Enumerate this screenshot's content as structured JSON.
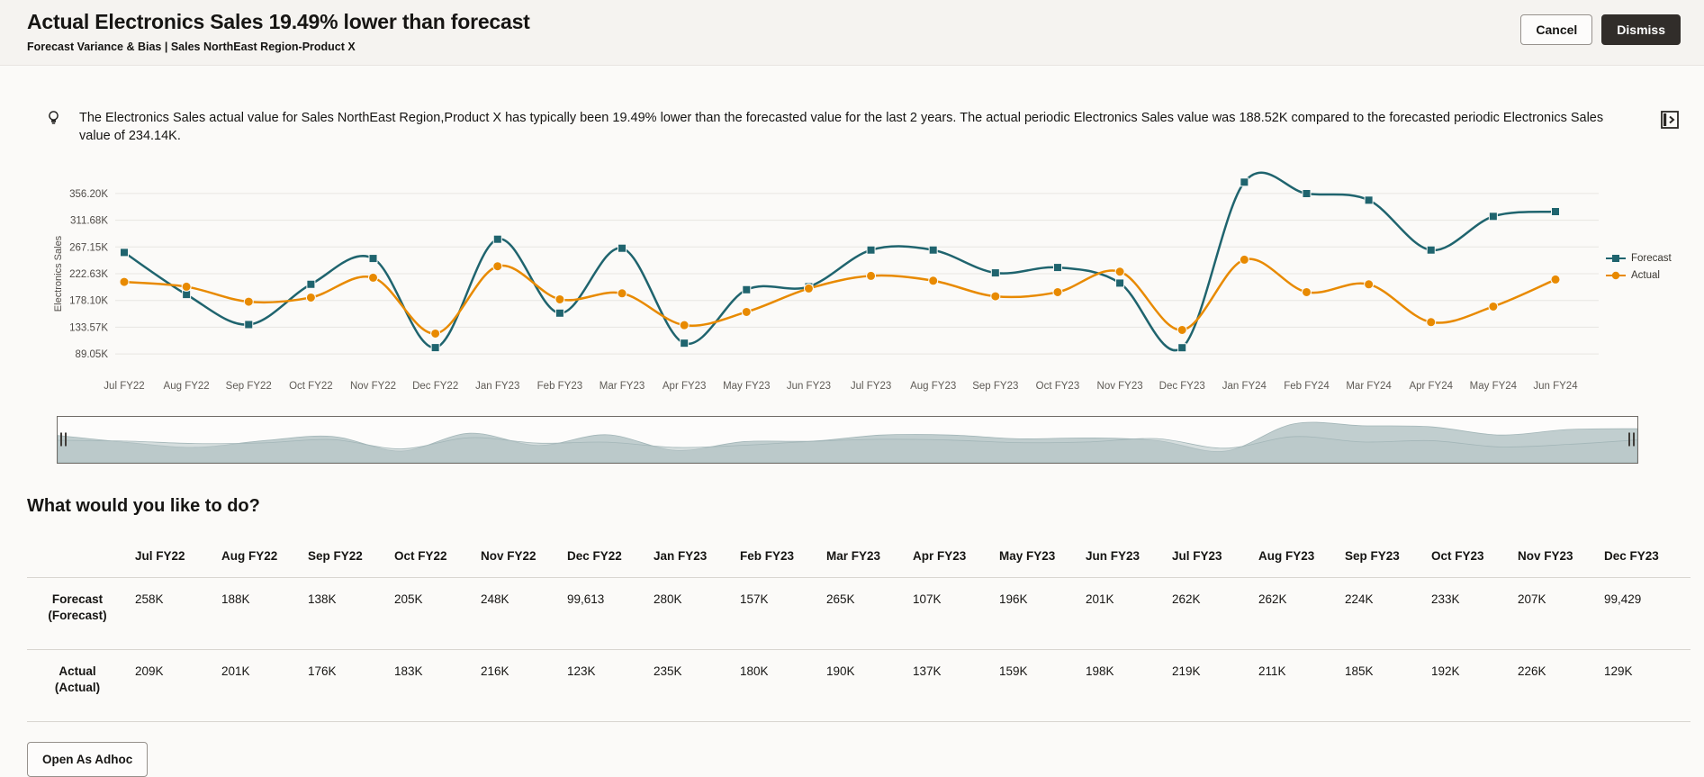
{
  "header": {
    "title": "Actual Electronics Sales 19.49% lower than forecast",
    "subtitle": "Forecast Variance & Bias | Sales NorthEast Region-Product X",
    "cancel_label": "Cancel",
    "dismiss_label": "Dismiss"
  },
  "insight": {
    "text": "The Electronics Sales actual value for Sales NorthEast Region,Product X has typically been 19.49% lower than the forecasted value for the last 2 years. The actual periodic Electronics Sales value was 188.52K compared to the forecasted periodic Electronics Sales value of 234.14K."
  },
  "chart_data": {
    "type": "line",
    "title": "",
    "xlabel": "",
    "ylabel": "Electronics Sales",
    "x": [
      "Jul FY22",
      "Aug FY22",
      "Sep FY22",
      "Oct FY22",
      "Nov FY22",
      "Dec FY22",
      "Jan FY23",
      "Feb FY23",
      "Mar FY23",
      "Apr FY23",
      "May FY23",
      "Jun FY23",
      "Jul FY23",
      "Aug FY23",
      "Sep FY23",
      "Oct FY23",
      "Nov FY23",
      "Dec FY23",
      "Jan FY24",
      "Feb FY24",
      "Mar FY24",
      "Apr FY24",
      "May FY24",
      "Jun FY24"
    ],
    "series": [
      {
        "name": "Forecast",
        "marker": "square",
        "color": "#1f646e",
        "values_k": [
          258,
          188,
          138,
          205,
          248,
          99.613,
          280,
          157,
          265,
          107,
          196,
          201,
          262,
          262,
          224,
          233,
          207,
          99.429,
          375,
          356,
          345,
          262,
          318,
          326
        ]
      },
      {
        "name": "Actual",
        "marker": "circle",
        "color": "#e88a00",
        "values_k": [
          209,
          201,
          176,
          183,
          216,
          123,
          235,
          180,
          190,
          137,
          159,
          198,
          219,
          211,
          185,
          192,
          226,
          129,
          246,
          192,
          205,
          142,
          168,
          213
        ]
      }
    ],
    "yticks": [
      {
        "v": 356.2,
        "label": "356.20K"
      },
      {
        "v": 311.68,
        "label": "311.68K"
      },
      {
        "v": 267.15,
        "label": "267.15K"
      },
      {
        "v": 222.63,
        "label": "222.63K"
      },
      {
        "v": 178.1,
        "label": "178.10K"
      },
      {
        "v": 133.57,
        "label": "133.57K"
      },
      {
        "v": 89.05,
        "label": "89.05K"
      }
    ],
    "ylim": [
      66.787,
      378.462
    ],
    "grid": true,
    "legend_position": "right",
    "overview_fill": "#b6c5c7"
  },
  "actions": {
    "heading": "What would you like to do?",
    "open_adhoc_label": "Open As Adhoc"
  },
  "table": {
    "columns": [
      "Jul FY22",
      "Aug FY22",
      "Sep FY22",
      "Oct FY22",
      "Nov FY22",
      "Dec FY22",
      "Jan FY23",
      "Feb FY23",
      "Mar FY23",
      "Apr FY23",
      "May FY23",
      "Jun FY23",
      "Jul FY23",
      "Aug FY23",
      "Sep FY23",
      "Oct FY23",
      "Nov FY23",
      "Dec FY23"
    ],
    "rows": [
      {
        "header_line1": "Forecast",
        "header_line2": "(Forecast)",
        "values": [
          "258K",
          "188K",
          "138K",
          "205K",
          "248K",
          "99,613",
          "280K",
          "157K",
          "265K",
          "107K",
          "196K",
          "201K",
          "262K",
          "262K",
          "224K",
          "233K",
          "207K",
          "99,429"
        ]
      },
      {
        "header_line1": "Actual",
        "header_line2": "(Actual)",
        "values": [
          "209K",
          "201K",
          "176K",
          "183K",
          "216K",
          "123K",
          "235K",
          "180K",
          "190K",
          "137K",
          "159K",
          "198K",
          "219K",
          "211K",
          "185K",
          "192K",
          "226K",
          "129K"
        ]
      }
    ]
  }
}
